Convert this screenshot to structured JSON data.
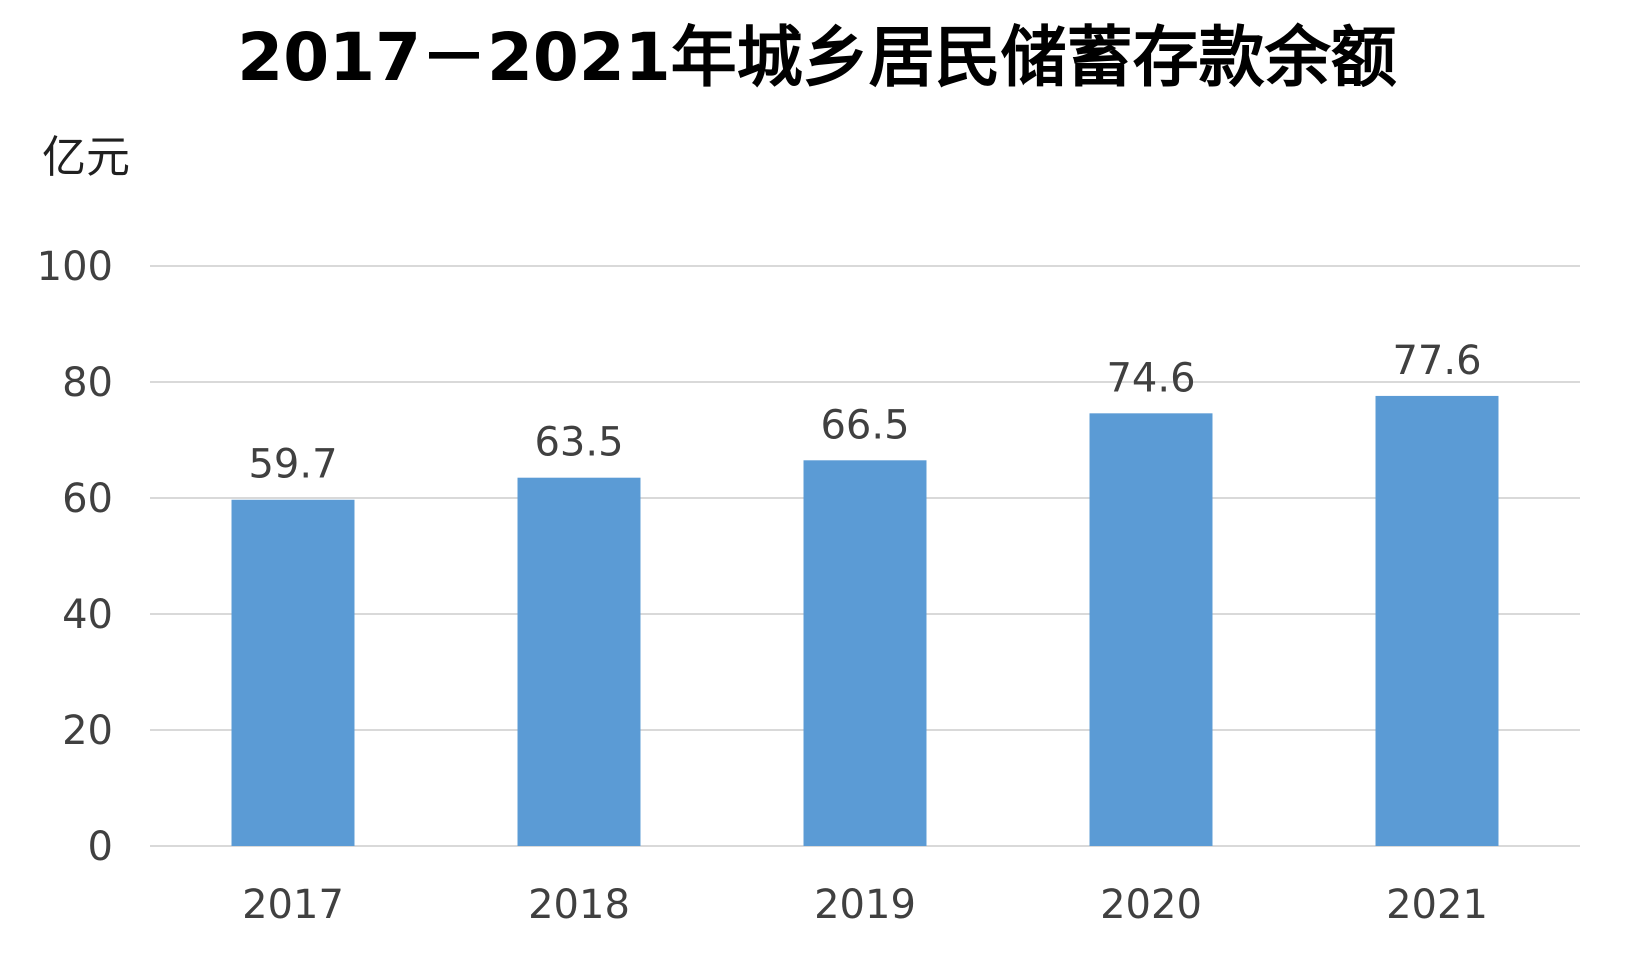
{
  "chart_data": {
    "type": "bar",
    "title": "2017－2021年城乡居民储蓄存款余额",
    "ylabel": "亿元",
    "xlabel": "",
    "categories": [
      "2017",
      "2018",
      "2019",
      "2020",
      "2021"
    ],
    "values": [
      59.7,
      63.5,
      66.5,
      74.6,
      77.6
    ],
    "value_labels": [
      "59.7",
      "63.5",
      "66.5",
      "74.6",
      "77.6"
    ],
    "ylim": [
      0,
      100
    ],
    "yticks": [
      0,
      20,
      40,
      60,
      80,
      100
    ],
    "ytick_labels": [
      "0",
      "20",
      "40",
      "60",
      "80",
      "100"
    ],
    "grid": true,
    "legend": "none",
    "bar_color": "#5B9BD5",
    "grid_color": "#D9D9D9"
  }
}
